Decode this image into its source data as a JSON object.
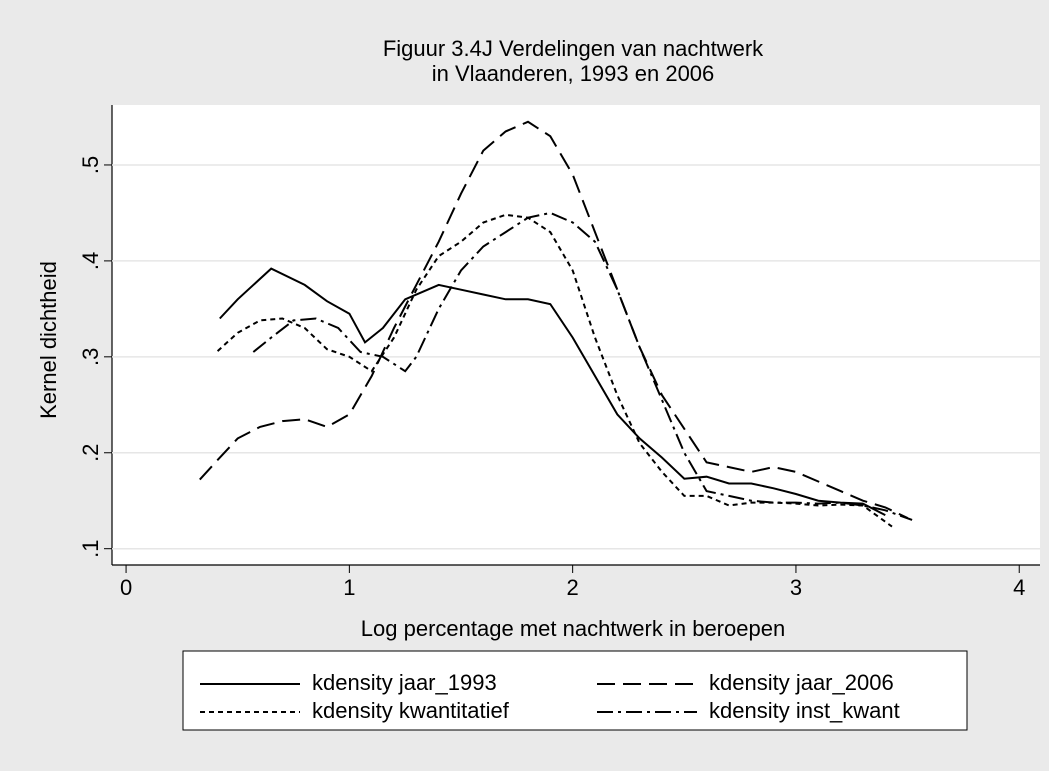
{
  "chart_data": {
    "type": "line",
    "title": "Figuur 3.4J Verdelingen van nachtwerk",
    "subtitle": "in Vlaanderen, 1993 en 2006",
    "x_label": "Log percentage met nachtwerk in beroepen",
    "y_label": "Kernel dichtheid",
    "xlim": [
      -0.063,
      4.093
    ],
    "ylim": [
      0.083,
      0.5625
    ],
    "xticks": [
      0,
      1,
      2,
      3,
      4
    ],
    "yticks": [
      {
        "value": 0.1,
        "label": ".1"
      },
      {
        "value": 0.2,
        "label": ".2"
      },
      {
        "value": 0.3,
        "label": ".3"
      },
      {
        "value": 0.4,
        "label": ".4"
      },
      {
        "value": 0.5,
        "label": ".5"
      }
    ],
    "grid": true,
    "legend": "bottom",
    "series": [
      {
        "name": "kdensity jaar_1993",
        "color": "#000000",
        "dash": "solid",
        "x": [
          0.42,
          0.5,
          0.65,
          0.8,
          0.9,
          1.0,
          1.07,
          1.15,
          1.25,
          1.4,
          1.5,
          1.6,
          1.7,
          1.8,
          1.9,
          2.0,
          2.1,
          2.2,
          2.3,
          2.4,
          2.5,
          2.6,
          2.7,
          2.8,
          2.9,
          3.0,
          3.1,
          3.2,
          3.3,
          3.4
        ],
        "values": [
          0.34,
          0.36,
          0.392,
          0.375,
          0.358,
          0.345,
          0.315,
          0.33,
          0.36,
          0.375,
          0.37,
          0.365,
          0.36,
          0.36,
          0.355,
          0.32,
          0.28,
          0.24,
          0.215,
          0.195,
          0.173,
          0.175,
          0.168,
          0.168,
          0.163,
          0.157,
          0.15,
          0.148,
          0.147,
          0.135
        ]
      },
      {
        "name": "kdensity jaar_2006",
        "color": "#000000",
        "dash": "longdash",
        "x": [
          0.33,
          0.4,
          0.5,
          0.6,
          0.7,
          0.8,
          0.9,
          1.0,
          1.1,
          1.2,
          1.3,
          1.4,
          1.5,
          1.6,
          1.7,
          1.8,
          1.9,
          2.0,
          2.1,
          2.2,
          2.3,
          2.4,
          2.5,
          2.6,
          2.7,
          2.8,
          2.9,
          3.0,
          3.1,
          3.2,
          3.3,
          3.4,
          3.5
        ],
        "values": [
          0.172,
          0.19,
          0.215,
          0.227,
          0.233,
          0.235,
          0.227,
          0.24,
          0.28,
          0.33,
          0.375,
          0.42,
          0.47,
          0.515,
          0.535,
          0.545,
          0.53,
          0.49,
          0.43,
          0.37,
          0.31,
          0.26,
          0.225,
          0.19,
          0.185,
          0.18,
          0.185,
          0.18,
          0.17,
          0.16,
          0.15,
          0.143,
          0.132
        ]
      },
      {
        "name": "kdensity kwantitatief",
        "color": "#000000",
        "dash": "shortdash",
        "x": [
          0.41,
          0.5,
          0.6,
          0.7,
          0.8,
          0.9,
          1.0,
          1.1,
          1.2,
          1.3,
          1.4,
          1.5,
          1.6,
          1.7,
          1.8,
          1.9,
          2.0,
          2.1,
          2.2,
          2.3,
          2.4,
          2.5,
          2.6,
          2.7,
          2.8,
          2.9,
          3.0,
          3.1,
          3.2,
          3.3,
          3.43
        ],
        "values": [
          0.306,
          0.325,
          0.338,
          0.34,
          0.33,
          0.308,
          0.3,
          0.285,
          0.32,
          0.37,
          0.405,
          0.42,
          0.44,
          0.448,
          0.445,
          0.43,
          0.39,
          0.32,
          0.26,
          0.21,
          0.18,
          0.155,
          0.155,
          0.145,
          0.148,
          0.148,
          0.147,
          0.145,
          0.146,
          0.145,
          0.123
        ]
      },
      {
        "name": "kdensity inst_kwant",
        "color": "#000000",
        "dash": "dashdot",
        "x": [
          0.57,
          0.65,
          0.75,
          0.85,
          0.95,
          1.05,
          1.15,
          1.25,
          1.3,
          1.4,
          1.5,
          1.6,
          1.7,
          1.8,
          1.9,
          2.0,
          2.1,
          2.2,
          2.3,
          2.4,
          2.5,
          2.6,
          2.7,
          2.8,
          2.9,
          3.0,
          3.1,
          3.2,
          3.3,
          3.4,
          3.52
        ],
        "values": [
          0.305,
          0.32,
          0.338,
          0.34,
          0.33,
          0.305,
          0.3,
          0.285,
          0.3,
          0.35,
          0.39,
          0.415,
          0.43,
          0.445,
          0.45,
          0.44,
          0.42,
          0.37,
          0.31,
          0.255,
          0.2,
          0.16,
          0.155,
          0.15,
          0.148,
          0.148,
          0.147,
          0.148,
          0.145,
          0.14,
          0.13
        ]
      }
    ]
  }
}
